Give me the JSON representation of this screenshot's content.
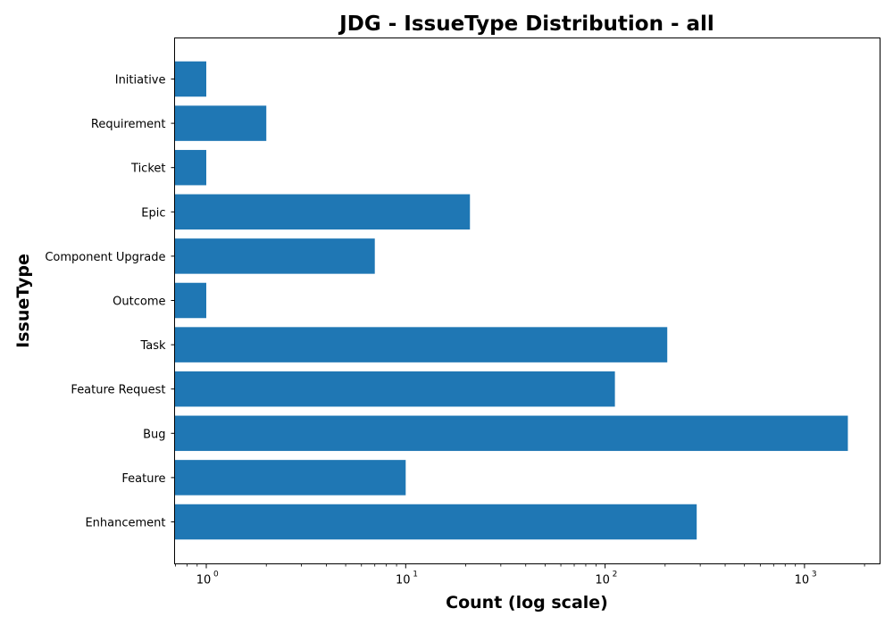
{
  "chart_data": {
    "type": "bar",
    "orientation": "horizontal",
    "title": "JDG - IssueType Distribution - all",
    "xlabel": "Count (log scale)",
    "ylabel": "IssueType",
    "x_scale": "log",
    "xlim": [
      0.7,
      2400
    ],
    "categories": [
      "Enhancement",
      "Feature",
      "Bug",
      "Feature Request",
      "Task",
      "Outcome",
      "Component Upgrade",
      "Epic",
      "Ticket",
      "Requirement",
      "Initiative"
    ],
    "values": [
      288,
      10,
      1650,
      112,
      205,
      1,
      7,
      21,
      1,
      2,
      1
    ],
    "x_ticks": [
      {
        "value": 1,
        "base": "10",
        "exp": "0"
      },
      {
        "value": 10,
        "base": "10",
        "exp": "1"
      },
      {
        "value": 100,
        "base": "10",
        "exp": "2"
      },
      {
        "value": 1000,
        "base": "10",
        "exp": "3"
      }
    ],
    "bar_color": "#1f77b4",
    "grid": false,
    "legend": false
  }
}
